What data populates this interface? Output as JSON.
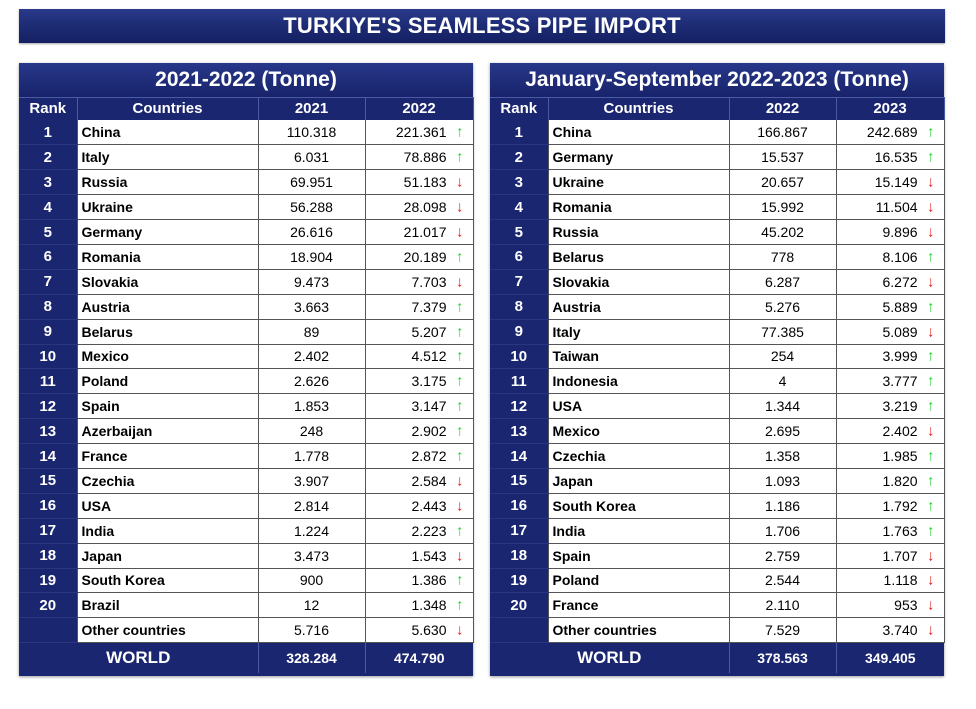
{
  "title": "TURKIYE'S SEAMLESS PIPE IMPORT",
  "colors": {
    "navy": "#1b2670",
    "up": "#1fd12a",
    "down": "#e02020"
  },
  "left": {
    "title": "2021-2022 (Tonne)",
    "headers": {
      "rank": "Rank",
      "country": "Countries",
      "y1": "2021",
      "y2": "2022"
    },
    "rows": [
      {
        "rank": "1",
        "country": "China",
        "v1": "110.318",
        "v2": "221.361",
        "arrow": "↑",
        "trend": "up"
      },
      {
        "rank": "2",
        "country": "Italy",
        "v1": "6.031",
        "v2": "78.886",
        "arrow": "↑",
        "trend": "up"
      },
      {
        "rank": "3",
        "country": "Russia",
        "v1": "69.951",
        "v2": "51.183",
        "arrow": "↓",
        "trend": "down"
      },
      {
        "rank": "4",
        "country": "Ukraine",
        "v1": "56.288",
        "v2": "28.098",
        "arrow": "↓",
        "trend": "down"
      },
      {
        "rank": "5",
        "country": "Germany",
        "v1": "26.616",
        "v2": "21.017",
        "arrow": "↓",
        "trend": "down"
      },
      {
        "rank": "6",
        "country": "Romania",
        "v1": "18.904",
        "v2": "20.189",
        "arrow": "↑",
        "trend": "up"
      },
      {
        "rank": "7",
        "country": "Slovakia",
        "v1": "9.473",
        "v2": "7.703",
        "arrow": "↓",
        "trend": "down"
      },
      {
        "rank": "8",
        "country": "Austria",
        "v1": "3.663",
        "v2": "7.379",
        "arrow": "↑",
        "trend": "up"
      },
      {
        "rank": "9",
        "country": "Belarus",
        "v1": "89",
        "v2": "5.207",
        "arrow": "↑",
        "trend": "up"
      },
      {
        "rank": "10",
        "country": "Mexico",
        "v1": "2.402",
        "v2": "4.512",
        "arrow": "↑",
        "trend": "up"
      },
      {
        "rank": "11",
        "country": "Poland",
        "v1": "2.626",
        "v2": "3.175",
        "arrow": "↑",
        "trend": "up"
      },
      {
        "rank": "12",
        "country": "Spain",
        "v1": "1.853",
        "v2": "3.147",
        "arrow": "↑",
        "trend": "up"
      },
      {
        "rank": "13",
        "country": "Azerbaijan",
        "v1": "248",
        "v2": "2.902",
        "arrow": "↑",
        "trend": "up"
      },
      {
        "rank": "14",
        "country": "France",
        "v1": "1.778",
        "v2": "2.872",
        "arrow": "↑",
        "trend": "up"
      },
      {
        "rank": "15",
        "country": "Czechia",
        "v1": "3.907",
        "v2": "2.584",
        "arrow": "↓",
        "trend": "down"
      },
      {
        "rank": "16",
        "country": "USA",
        "v1": "2.814",
        "v2": "2.443",
        "arrow": "↓",
        "trend": "down"
      },
      {
        "rank": "17",
        "country": "India",
        "v1": "1.224",
        "v2": "2.223",
        "arrow": "↑",
        "trend": "up"
      },
      {
        "rank": "18",
        "country": "Japan",
        "v1": "3.473",
        "v2": "1.543",
        "arrow": "↓",
        "trend": "down"
      },
      {
        "rank": "19",
        "country": "South Korea",
        "v1": "900",
        "v2": "1.386",
        "arrow": "↑",
        "trend": "up"
      },
      {
        "rank": "20",
        "country": "Brazil",
        "v1": "12",
        "v2": "1.348",
        "arrow": "↑",
        "trend": "up"
      },
      {
        "rank": "",
        "country": "Other countries",
        "v1": "5.716",
        "v2": "5.630",
        "arrow": "↓",
        "trend": "down"
      }
    ],
    "world": {
      "label": "WORLD",
      "v1": "328.284",
      "v2": "474.790"
    }
  },
  "right": {
    "title": "January-September 2022-2023 (Tonne)",
    "headers": {
      "rank": "Rank",
      "country": "Countries",
      "y1": "2022",
      "y2": "2023"
    },
    "rows": [
      {
        "rank": "1",
        "country": "China",
        "v1": "166.867",
        "v2": "242.689",
        "arrow": "↑",
        "trend": "up"
      },
      {
        "rank": "2",
        "country": "Germany",
        "v1": "15.537",
        "v2": "16.535",
        "arrow": "↑",
        "trend": "up"
      },
      {
        "rank": "3",
        "country": "Ukraine",
        "v1": "20.657",
        "v2": "15.149",
        "arrow": "↓",
        "trend": "down"
      },
      {
        "rank": "4",
        "country": "Romania",
        "v1": "15.992",
        "v2": "11.504",
        "arrow": "↓",
        "trend": "down"
      },
      {
        "rank": "5",
        "country": "Russia",
        "v1": "45.202",
        "v2": "9.896",
        "arrow": "↓",
        "trend": "down"
      },
      {
        "rank": "6",
        "country": "Belarus",
        "v1": "778",
        "v2": "8.106",
        "arrow": "↑",
        "trend": "up"
      },
      {
        "rank": "7",
        "country": "Slovakia",
        "v1": "6.287",
        "v2": "6.272",
        "arrow": "↓",
        "trend": "down"
      },
      {
        "rank": "8",
        "country": "Austria",
        "v1": "5.276",
        "v2": "5.889",
        "arrow": "↑",
        "trend": "up"
      },
      {
        "rank": "9",
        "country": "Italy",
        "v1": "77.385",
        "v2": "5.089",
        "arrow": "↓",
        "trend": "down"
      },
      {
        "rank": "10",
        "country": "Taiwan",
        "v1": "254",
        "v2": "3.999",
        "arrow": "↑",
        "trend": "up"
      },
      {
        "rank": "11",
        "country": "Indonesia",
        "v1": "4",
        "v2": "3.777",
        "arrow": "↑",
        "trend": "up"
      },
      {
        "rank": "12",
        "country": "USA",
        "v1": "1.344",
        "v2": "3.219",
        "arrow": "↑",
        "trend": "up"
      },
      {
        "rank": "13",
        "country": "Mexico",
        "v1": "2.695",
        "v2": "2.402",
        "arrow": "↓",
        "trend": "down"
      },
      {
        "rank": "14",
        "country": "Czechia",
        "v1": "1.358",
        "v2": "1.985",
        "arrow": "↑",
        "trend": "up"
      },
      {
        "rank": "15",
        "country": "Japan",
        "v1": "1.093",
        "v2": "1.820",
        "arrow": "↑",
        "trend": "up"
      },
      {
        "rank": "16",
        "country": "South Korea",
        "v1": "1.186",
        "v2": "1.792",
        "arrow": "↑",
        "trend": "up"
      },
      {
        "rank": "17",
        "country": "India",
        "v1": "1.706",
        "v2": "1.763",
        "arrow": "↑",
        "trend": "up"
      },
      {
        "rank": "18",
        "country": "Spain",
        "v1": "2.759",
        "v2": "1.707",
        "arrow": "↓",
        "trend": "down"
      },
      {
        "rank": "19",
        "country": "Poland",
        "v1": "2.544",
        "v2": "1.118",
        "arrow": "↓",
        "trend": "down"
      },
      {
        "rank": "20",
        "country": "France",
        "v1": "2.110",
        "v2": "953",
        "arrow": "↓",
        "trend": "down"
      },
      {
        "rank": "",
        "country": "Other countries",
        "v1": "7.529",
        "v2": "3.740",
        "arrow": "↓",
        "trend": "down"
      }
    ],
    "world": {
      "label": "WORLD",
      "v1": "378.563",
      "v2": "349.405"
    }
  }
}
